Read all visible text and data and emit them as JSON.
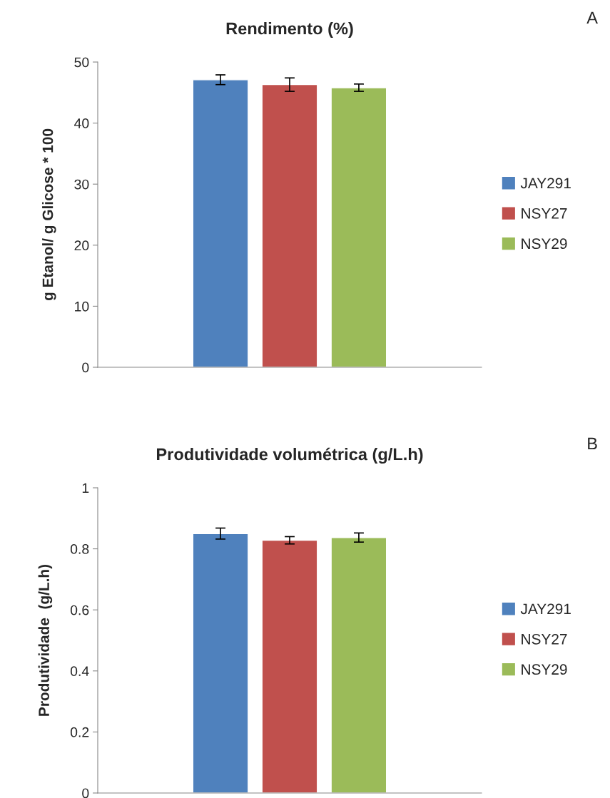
{
  "chart_data": [
    {
      "type": "bar",
      "title": "Rendimento (%)",
      "ylabel": "g Etanol/ g Glicose * 100",
      "annotations": [
        "A"
      ],
      "categories": [
        null
      ],
      "series": [
        {
          "name": "JAY291",
          "color": "#4f81bd",
          "values": [
            47.1
          ],
          "errors": [
            0.8
          ]
        },
        {
          "name": "NSY27",
          "color": "#c0504d",
          "values": [
            46.3
          ],
          "errors": [
            1.1
          ]
        },
        {
          "name": "NSY29",
          "color": "#9bbb59",
          "values": [
            45.8
          ],
          "errors": [
            0.6
          ]
        }
      ],
      "ylim": [
        0,
        50
      ],
      "yticks": [
        0,
        10,
        20,
        30,
        40,
        50
      ],
      "grid": false,
      "legend": "right"
    },
    {
      "type": "bar",
      "title": "Produtividade volumétrica (g/L.h)",
      "ylabel": "Produtividade  (g/L.h)",
      "annotations": [
        "B"
      ],
      "categories": [
        null
      ],
      "series": [
        {
          "name": "JAY291",
          "color": "#4f81bd",
          "values": [
            0.85
          ],
          "errors": [
            0.018
          ]
        },
        {
          "name": "NSY27",
          "color": "#c0504d",
          "values": [
            0.828
          ],
          "errors": [
            0.012
          ]
        },
        {
          "name": "NSY29",
          "color": "#9bbb59",
          "values": [
            0.837
          ],
          "errors": [
            0.015
          ]
        }
      ],
      "ylim": [
        0,
        1
      ],
      "yticks": [
        0,
        0.2,
        0.4,
        0.6,
        0.8,
        1
      ],
      "grid": false,
      "legend": "right"
    }
  ]
}
